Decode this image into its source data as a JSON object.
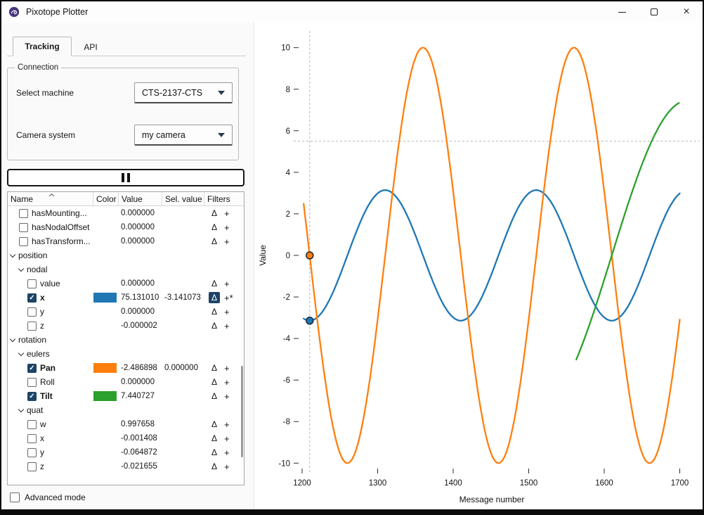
{
  "window": {
    "title": "Pixotope Plotter"
  },
  "tabs": [
    {
      "label": "Tracking",
      "active": true
    },
    {
      "label": "API",
      "active": false
    }
  ],
  "connection": {
    "legend": "Connection",
    "machine_label": "Select machine",
    "machine_value": "CTS-2137-CTS",
    "camera_label": "Camera system",
    "camera_value": "my camera"
  },
  "table": {
    "headers": [
      "Name",
      "Color",
      "Value",
      "Sel. value",
      "Filters"
    ],
    "sort_column": "Name",
    "sort_direction": "ascending",
    "rows": [
      {
        "kind": "item",
        "indent": 1,
        "checked": false,
        "label": "hasMounting...",
        "value": "0.000000",
        "sel_value": "",
        "swatch": null,
        "delta_active": false,
        "plus": "+"
      },
      {
        "kind": "item",
        "indent": 1,
        "checked": false,
        "label": "hasNodalOffset",
        "value": "0.000000",
        "sel_value": "",
        "swatch": null,
        "delta_active": false,
        "plus": "+"
      },
      {
        "kind": "item",
        "indent": 1,
        "checked": false,
        "label": "hasTransform...",
        "value": "0.000000",
        "sel_value": "",
        "swatch": null,
        "delta_active": false,
        "plus": "+"
      },
      {
        "kind": "group",
        "indent": 0,
        "label": "position"
      },
      {
        "kind": "group",
        "indent": 1,
        "label": "nodal"
      },
      {
        "kind": "item",
        "indent": 2,
        "checked": false,
        "label": "value",
        "value": "0.000000",
        "sel_value": "",
        "swatch": null,
        "delta_active": false,
        "plus": "+"
      },
      {
        "kind": "item",
        "indent": 2,
        "checked": true,
        "label": "x",
        "value": "75.131010",
        "sel_value": "-3.141073",
        "swatch": "#1f77b4",
        "delta_active": true,
        "plus": "+*"
      },
      {
        "kind": "item",
        "indent": 2,
        "checked": false,
        "label": "y",
        "value": "0.000000",
        "sel_value": "",
        "swatch": null,
        "delta_active": false,
        "plus": "+"
      },
      {
        "kind": "item",
        "indent": 2,
        "checked": false,
        "label": "z",
        "value": "-0.000002",
        "sel_value": "",
        "swatch": null,
        "delta_active": false,
        "plus": "+"
      },
      {
        "kind": "group",
        "indent": 0,
        "label": "rotation"
      },
      {
        "kind": "group",
        "indent": 1,
        "label": "eulers"
      },
      {
        "kind": "item",
        "indent": 2,
        "checked": true,
        "label": "Pan",
        "value": "-2.486898",
        "sel_value": "0.000000",
        "swatch": "#ff7f0e",
        "delta_active": false,
        "plus": "+"
      },
      {
        "kind": "item",
        "indent": 2,
        "checked": false,
        "label": "Roll",
        "value": "0.000000",
        "sel_value": "",
        "swatch": null,
        "delta_active": false,
        "plus": "+"
      },
      {
        "kind": "item",
        "indent": 2,
        "checked": true,
        "label": "Tilt",
        "value": "7.440727",
        "sel_value": "",
        "swatch": "#2ca02c",
        "delta_active": false,
        "plus": "+"
      },
      {
        "kind": "group",
        "indent": 1,
        "label": "quat"
      },
      {
        "kind": "item",
        "indent": 2,
        "checked": false,
        "label": "w",
        "value": "0.997658",
        "sel_value": "",
        "swatch": null,
        "delta_active": false,
        "plus": "+"
      },
      {
        "kind": "item",
        "indent": 2,
        "checked": false,
        "label": "x",
        "value": "-0.001408",
        "sel_value": "",
        "swatch": null,
        "delta_active": false,
        "plus": "+"
      },
      {
        "kind": "item",
        "indent": 2,
        "checked": false,
        "label": "y",
        "value": "-0.064872",
        "sel_value": "",
        "swatch": null,
        "delta_active": false,
        "plus": "+"
      },
      {
        "kind": "item",
        "indent": 2,
        "checked": false,
        "label": "z",
        "value": "-0.021655",
        "sel_value": "",
        "swatch": null,
        "delta_active": false,
        "plus": "+"
      }
    ]
  },
  "advanced_mode": {
    "label": "Advanced mode",
    "checked": false
  },
  "colors": {
    "accent": "#1d4467",
    "series_blue": "#1f77b4",
    "series_orange": "#ff7f0e",
    "series_green": "#2ca02c"
  },
  "chart_data": {
    "type": "line",
    "xlabel": "Message number",
    "ylabel": "Value",
    "x_ticks": [
      1200,
      1300,
      1400,
      1500,
      1600,
      1700
    ],
    "y_ticks": [
      -10,
      -8,
      -6,
      -4,
      -2,
      0,
      2,
      4,
      6,
      8,
      10
    ],
    "xlim": [
      1195,
      1706
    ],
    "ylim": [
      -10.6,
      10.6
    ],
    "grid": false,
    "series": [
      {
        "name": "position-nodal-x",
        "label": "x",
        "color": "#1f77b4",
        "model": "sine",
        "amplitude": 3.141,
        "period": 200,
        "x_zero": 1260,
        "x_start": 1202,
        "x_end": 1700
      },
      {
        "name": "rotation-eulers-pan",
        "label": "Pan",
        "color": "#ff7f0e",
        "model": "sine",
        "amplitude": 10,
        "period": 200,
        "x_zero": 1310,
        "x_start": 1202,
        "x_end": 1700
      },
      {
        "name": "rotation-eulers-tilt",
        "label": "Tilt",
        "color": "#2ca02c",
        "model": "sine",
        "amplitude": 7.45,
        "period": 400,
        "x_zero": 1610,
        "x_start": 1563,
        "x_end": 1700
      }
    ],
    "markers": [
      {
        "x": 1210,
        "y": 0.0,
        "color": "#ff7f0e"
      },
      {
        "x": 1210,
        "y": -3.141,
        "color": "#1f77b4"
      }
    ],
    "crosshair": {
      "x": 1210,
      "y": 5.5
    }
  }
}
